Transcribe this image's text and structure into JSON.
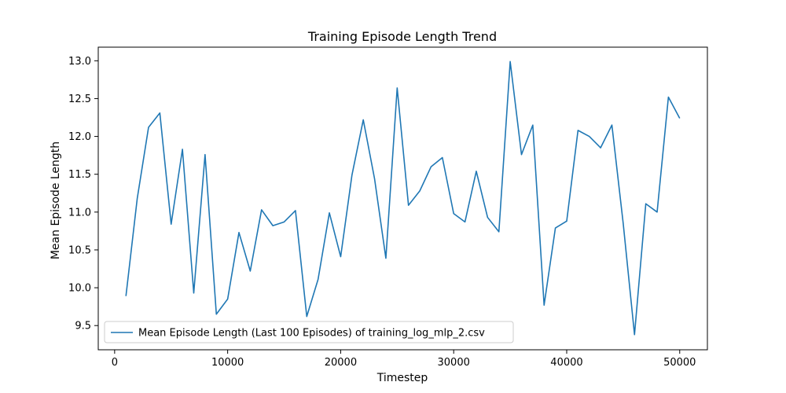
{
  "chart_data": {
    "type": "line",
    "title": "Training Episode Length Trend",
    "xlabel": "Timestep",
    "ylabel": "Mean Episode Length",
    "xlim": [
      -1450,
      52450
    ],
    "ylim": [
      9.18,
      13.18
    ],
    "xticks": [
      0,
      10000,
      20000,
      30000,
      40000,
      50000
    ],
    "xtick_labels": [
      "0",
      "10000",
      "20000",
      "30000",
      "40000",
      "50000"
    ],
    "yticks": [
      9.5,
      10.0,
      10.5,
      11.0,
      11.5,
      12.0,
      12.5,
      13.0
    ],
    "ytick_labels": [
      "9.5",
      "10.0",
      "10.5",
      "11.0",
      "11.5",
      "12.0",
      "12.5",
      "13.0"
    ],
    "grid": false,
    "legend_position": "lower-left",
    "series": [
      {
        "name": "Mean Episode Length (Last 100 Episodes) of training_log_mlp_2.csv",
        "color": "#1f77b4",
        "x": [
          1000,
          2000,
          3000,
          4000,
          5000,
          6000,
          7000,
          8000,
          9000,
          10000,
          11000,
          12000,
          13000,
          14000,
          15000,
          16000,
          17000,
          18000,
          19000,
          20000,
          21000,
          22000,
          23000,
          24000,
          25000,
          26000,
          27000,
          28000,
          29000,
          30000,
          31000,
          32000,
          33000,
          34000,
          35000,
          36000,
          37000,
          38000,
          39000,
          40000,
          41000,
          42000,
          43000,
          44000,
          45000,
          46000,
          47000,
          48000,
          49000,
          50000
        ],
        "y": [
          9.89,
          11.18,
          12.12,
          12.31,
          10.84,
          11.83,
          9.93,
          11.76,
          9.65,
          9.85,
          10.73,
          10.22,
          11.03,
          10.82,
          10.87,
          11.02,
          9.62,
          10.11,
          10.99,
          10.41,
          11.49,
          12.22,
          11.44,
          10.39,
          12.64,
          11.09,
          11.28,
          11.6,
          11.72,
          10.98,
          10.87,
          11.54,
          10.93,
          10.74,
          12.99,
          11.76,
          12.15,
          9.77,
          10.79,
          10.88,
          12.08,
          12.0,
          11.85,
          12.15,
          10.85,
          9.38,
          11.11,
          11.0,
          12.52,
          12.24
        ]
      }
    ]
  }
}
